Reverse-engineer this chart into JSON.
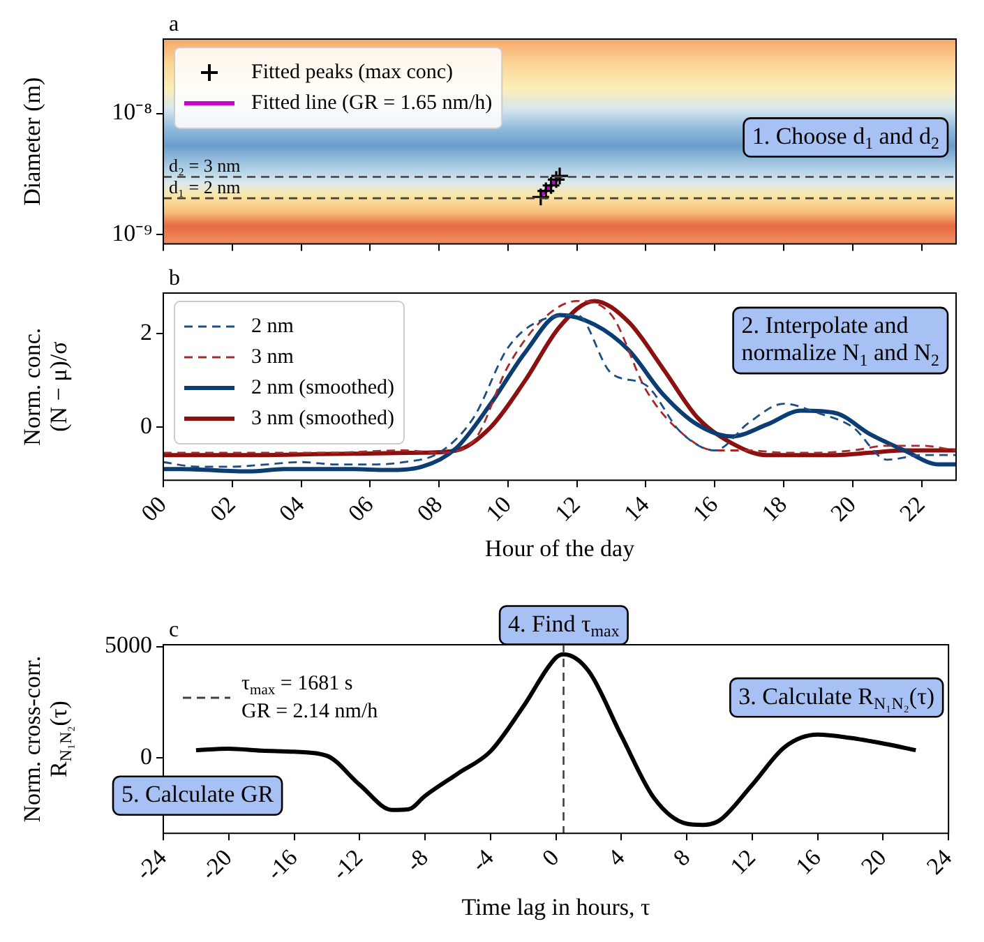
{
  "chart_data": [
    {
      "type": "scatter",
      "title": "a",
      "ylabel": "Diameter (m)",
      "log": "y",
      "xlim": [
        0,
        23
      ],
      "xticks": [
        0,
        2,
        4,
        6,
        8,
        10,
        12,
        14,
        16,
        18,
        20,
        22
      ],
      "ylim": [
        8.4e-10,
        4.1e-08
      ],
      "yticks": [
        {
          "value": 1e-09,
          "label": "10⁻⁹"
        },
        {
          "value": 1e-08,
          "label": "10⁻⁸"
        }
      ],
      "tick_labels": "y",
      "grid": false,
      "legend": "top left",
      "series": [
        {
          "name": "Fitted peaks (max conc)",
          "marker": "cross",
          "color": "#000000",
          "x": [
            10.95,
            11.1,
            11.25,
            11.4,
            11.5
          ],
          "values": [
            2.05e-09,
            2.3e-09,
            2.55e-09,
            2.85e-09,
            3.05e-09
          ]
        },
        {
          "name": "Fitted line (GR = 1.65 nm/h)",
          "type": "line",
          "line_style": "solid",
          "color": "#cc00cc",
          "x": [
            10.95,
            11.5
          ],
          "values": [
            2.1e-09,
            3e-09
          ]
        }
      ],
      "ref_lines": [
        {
          "axis": "y",
          "value": 3e-09,
          "label": "d₂ = 3 nm",
          "line_style": "dashed",
          "color": "#404040"
        },
        {
          "axis": "y",
          "value": 2e-09,
          "label": "d₁ = 2 nm",
          "line_style": "dashed",
          "color": "#404040"
        }
      ],
      "annotations": [
        "1. Choose d$_{1}$ and d$_{2}$"
      ]
    },
    {
      "type": "line",
      "title": "b",
      "ylabel": "Norm. conc.\n(N − μ)/σ",
      "xlabel": "Hour of the day",
      "xlim": [
        0,
        23
      ],
      "xticks": [
        {
          "value": 0,
          "label": "00"
        },
        {
          "value": 2,
          "label": "02"
        },
        {
          "value": 4,
          "label": "04"
        },
        {
          "value": 6,
          "label": "06"
        },
        {
          "value": 8,
          "label": "08"
        },
        {
          "value": 10,
          "label": "10"
        },
        {
          "value": 12,
          "label": "12"
        },
        {
          "value": 14,
          "label": "14"
        },
        {
          "value": 16,
          "label": "16"
        },
        {
          "value": 18,
          "label": "18"
        },
        {
          "value": 20,
          "label": "20"
        },
        {
          "value": 22,
          "label": "22"
        }
      ],
      "ylim": [
        -1.14,
        2.87
      ],
      "yticks": [
        0,
        2
      ],
      "grid": false,
      "legend": "top left",
      "series": [
        {
          "name": "2 nm",
          "line_style": "dashed",
          "color": "#1f4e85",
          "x": [
            0,
            1,
            2,
            3,
            4,
            5,
            6,
            7,
            8,
            9,
            10,
            11,
            12,
            13,
            14,
            15,
            16,
            17,
            18,
            19,
            20,
            21,
            22,
            23
          ],
          "values": [
            -0.75,
            -0.85,
            -0.85,
            -0.8,
            -0.75,
            -0.8,
            -0.8,
            -0.75,
            -0.55,
            0.2,
            1.7,
            2.3,
            2.4,
            1.15,
            0.9,
            -0.1,
            -0.5,
            0.1,
            0.5,
            0.3,
            0.0,
            -0.7,
            -0.6,
            -0.6
          ]
        },
        {
          "name": "3 nm",
          "line_style": "dashed",
          "color": "#a52a2a",
          "x": [
            0,
            1,
            2,
            3,
            4,
            5,
            6,
            7,
            8,
            9,
            10,
            11,
            12,
            13,
            14,
            15,
            16,
            17,
            18,
            19,
            20,
            21,
            22,
            23
          ],
          "values": [
            -0.55,
            -0.55,
            -0.55,
            -0.55,
            -0.55,
            -0.55,
            -0.52,
            -0.5,
            -0.55,
            -0.3,
            1.3,
            2.3,
            2.7,
            2.4,
            0.8,
            -0.1,
            -0.5,
            -0.5,
            -0.55,
            -0.55,
            -0.5,
            -0.4,
            -0.4,
            -0.5
          ]
        },
        {
          "name": "2 nm (smoothed)",
          "line_style": "solid",
          "color": "#0b3d73",
          "x": [
            0,
            0.5,
            2.5,
            3.5,
            5.5,
            6.5,
            7.5,
            8.5,
            9.5,
            10.5,
            11.5,
            12.5,
            13.5,
            14.5,
            15.5,
            16.5,
            17.5,
            18.5,
            19.5,
            20.5,
            21.5,
            22.5,
            23
          ],
          "values": [
            -0.9,
            -0.9,
            -0.95,
            -0.9,
            -0.9,
            -0.92,
            -0.85,
            -0.45,
            0.5,
            1.6,
            2.4,
            2.2,
            1.65,
            0.7,
            0.05,
            -0.2,
            0.05,
            0.35,
            0.3,
            -0.15,
            -0.5,
            -0.8,
            -0.8
          ]
        },
        {
          "name": "3 nm (smoothed)",
          "line_style": "solid",
          "color": "#8b1010",
          "x": [
            0,
            0.5,
            2.5,
            4.5,
            6.5,
            7.5,
            8.5,
            9.5,
            10.5,
            11.5,
            12.5,
            13.5,
            14.5,
            15.5,
            16.5,
            17.5,
            18.5,
            19.5,
            20.5,
            21.5,
            22.5,
            23
          ],
          "values": [
            -0.6,
            -0.6,
            -0.6,
            -0.58,
            -0.56,
            -0.55,
            -0.5,
            0.0,
            1.0,
            2.15,
            2.7,
            2.25,
            1.25,
            0.2,
            -0.35,
            -0.6,
            -0.6,
            -0.6,
            -0.55,
            -0.5,
            -0.5,
            -0.5
          ]
        }
      ],
      "annotations": [
        "2. Interpolate and\nnormalize N$_{1}$ and N$_{2}$"
      ]
    },
    {
      "type": "line",
      "title": "c",
      "ylabel": "Norm. cross-corr.\nR$_{N₁N₂}$(τ)",
      "xlabel": "Time lag in hours, τ",
      "xlim": [
        -24,
        24
      ],
      "xticks": [
        -24,
        -20,
        -16,
        -12,
        -8,
        -4,
        0,
        4,
        8,
        12,
        16,
        20,
        24
      ],
      "ylim": [
        -3380,
        5080
      ],
      "yticks": [
        0,
        5000
      ],
      "grid": false,
      "series": [
        {
          "line_style": "solid",
          "color": "#000000",
          "x": [
            -22,
            -20,
            -18,
            -16,
            -14,
            -12,
            -10,
            -9,
            -8,
            -6,
            -4,
            -2,
            0,
            0.47,
            2,
            4,
            6,
            8,
            9,
            10,
            12,
            14,
            16,
            18,
            20,
            22
          ],
          "values": [
            350,
            420,
            330,
            280,
            100,
            -1200,
            -2330,
            -2300,
            -1700,
            -700,
            300,
            2300,
            4500,
            4650,
            3900,
            1000,
            -1800,
            -2950,
            -3000,
            -2800,
            -1200,
            500,
            1050,
            900,
            650,
            350
          ]
        }
      ],
      "ref_lines": [
        {
          "axis": "x",
          "value": 0.467,
          "line_style": "dashed",
          "color": "#404040"
        }
      ],
      "annotations": [
        "τ$_{max}$ = 1681 s\nGR = 2.14 nm/h",
        "4. Find τ$_{max}$",
        "3. Calculate R$_{N₁N₂}$(τ)",
        "5. Calculate GR"
      ]
    }
  ]
}
